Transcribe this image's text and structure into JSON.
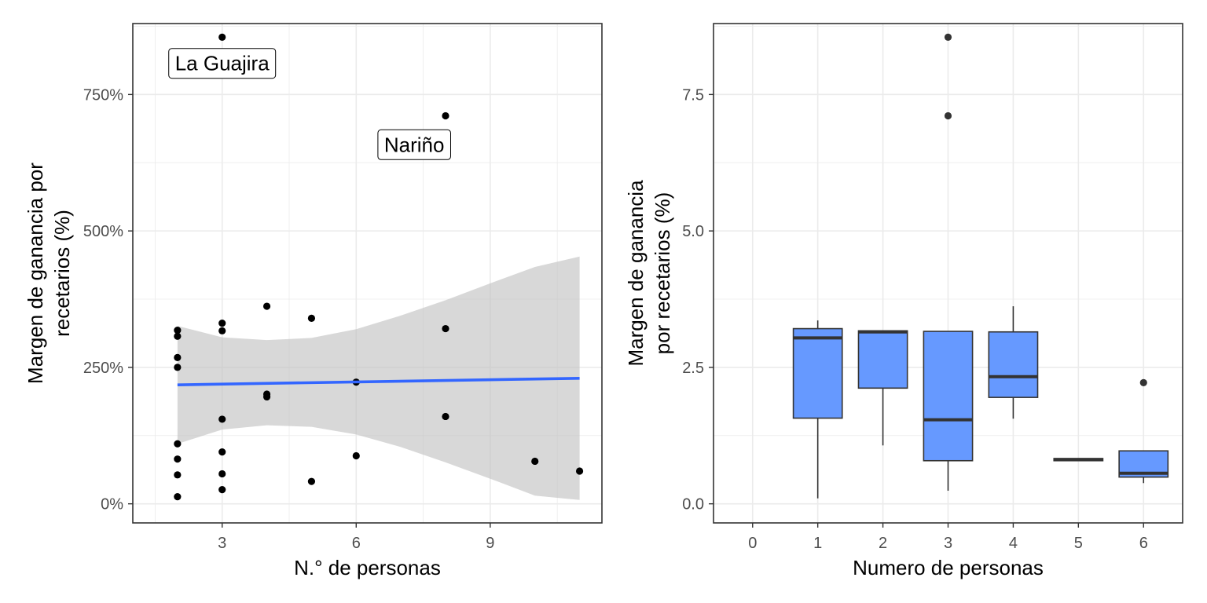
{
  "colors": {
    "grid": "#ebebeb",
    "panel_border": "#333333",
    "point": "#000000",
    "smooth_line": "#3366ff",
    "ribbon": "#bebebe",
    "box_fill": "#6699ff",
    "box_line": "#333333"
  },
  "chart_data": [
    {
      "type": "scatter",
      "xlabel": "N.° de personas",
      "ylabel_lines": [
        "Margen de ganancia por",
        "recetarios (%)"
      ],
      "xlim": [
        1,
        11.5
      ],
      "ylim": [
        -35,
        880
      ],
      "x_ticks": [
        3,
        6,
        9
      ],
      "x_tick_labels": [
        "3",
        "6",
        "9"
      ],
      "y_ticks": [
        0,
        250,
        500,
        750
      ],
      "y_tick_labels": [
        "0%",
        "250%",
        "500%",
        "750%"
      ],
      "grid": true,
      "points": [
        {
          "x": 2,
          "y": 318
        },
        {
          "x": 2,
          "y": 307
        },
        {
          "x": 2,
          "y": 268
        },
        {
          "x": 2,
          "y": 250
        },
        {
          "x": 2,
          "y": 110
        },
        {
          "x": 2,
          "y": 82
        },
        {
          "x": 2,
          "y": 53
        },
        {
          "x": 2,
          "y": 13
        },
        {
          "x": 3,
          "y": 855
        },
        {
          "x": 3,
          "y": 331
        },
        {
          "x": 3,
          "y": 317
        },
        {
          "x": 3,
          "y": 155
        },
        {
          "x": 3,
          "y": 95
        },
        {
          "x": 3,
          "y": 55
        },
        {
          "x": 3,
          "y": 26
        },
        {
          "x": 4,
          "y": 362
        },
        {
          "x": 4,
          "y": 201
        },
        {
          "x": 4,
          "y": 196
        },
        {
          "x": 5,
          "y": 340
        },
        {
          "x": 5,
          "y": 41
        },
        {
          "x": 6,
          "y": 223
        },
        {
          "x": 6,
          "y": 88
        },
        {
          "x": 8,
          "y": 711
        },
        {
          "x": 8,
          "y": 321
        },
        {
          "x": 8,
          "y": 160
        },
        {
          "x": 10,
          "y": 78
        },
        {
          "x": 11,
          "y": 60
        }
      ],
      "smooth": {
        "x": [
          2,
          11
        ],
        "y": [
          218,
          230
        ],
        "ribbon": [
          {
            "x": 2,
            "lower": 110,
            "upper": 326
          },
          {
            "x": 3,
            "lower": 136,
            "upper": 305
          },
          {
            "x": 4,
            "lower": 144,
            "upper": 300
          },
          {
            "x": 5,
            "lower": 141,
            "upper": 304
          },
          {
            "x": 6,
            "lower": 127,
            "upper": 320
          },
          {
            "x": 7,
            "lower": 104,
            "upper": 345
          },
          {
            "x": 8,
            "lower": 76,
            "upper": 373
          },
          {
            "x": 9,
            "lower": 46,
            "upper": 404
          },
          {
            "x": 10,
            "lower": 15,
            "upper": 434
          },
          {
            "x": 11,
            "lower": 7,
            "upper": 453
          }
        ]
      },
      "labels": [
        {
          "text": "La Guajira",
          "x": 3,
          "y": 807
        },
        {
          "text": "Nariño",
          "x": 7.3,
          "y": 658
        }
      ]
    },
    {
      "type": "box",
      "xlabel": "Numero de personas",
      "ylabel_lines": [
        "Margen de ganancia",
        "por recetarios (%)"
      ],
      "xlim": [
        -0.6,
        6.6
      ],
      "ylim": [
        -0.35,
        8.8
      ],
      "categories": [
        "0",
        "1",
        "2",
        "3",
        "4",
        "5",
        "6"
      ],
      "y_ticks": [
        0,
        2.5,
        5,
        7.5
      ],
      "y_tick_labels": [
        "0.0",
        "2.5",
        "5.0",
        "7.5"
      ],
      "grid": true,
      "boxes": [
        {
          "x": 1,
          "whisker_low": 0.1,
          "q1": 1.57,
          "median": 3.04,
          "q3": 3.21,
          "whisker_high": 3.36,
          "outliers": []
        },
        {
          "x": 2,
          "whisker_low": 1.07,
          "q1": 2.12,
          "median": 3.15,
          "q3": 3.17,
          "whisker_high": 3.17,
          "outliers": []
        },
        {
          "x": 3,
          "whisker_low": 0.24,
          "q1": 0.79,
          "median": 1.54,
          "q3": 3.16,
          "whisker_high": 3.16,
          "outliers": [
            7.11,
            8.55
          ]
        },
        {
          "x": 4,
          "whisker_low": 1.56,
          "q1": 1.95,
          "median": 2.33,
          "q3": 3.15,
          "whisker_high": 3.62,
          "outliers": []
        },
        {
          "x": 5,
          "whisker_low": 0.79,
          "q1": 0.79,
          "median": 0.81,
          "q3": 0.83,
          "whisker_high": 0.83,
          "outliers": []
        },
        {
          "x": 6,
          "whisker_low": 0.38,
          "q1": 0.49,
          "median": 0.56,
          "q3": 0.97,
          "whisker_high": 0.97,
          "outliers": [
            2.22
          ]
        }
      ]
    }
  ]
}
